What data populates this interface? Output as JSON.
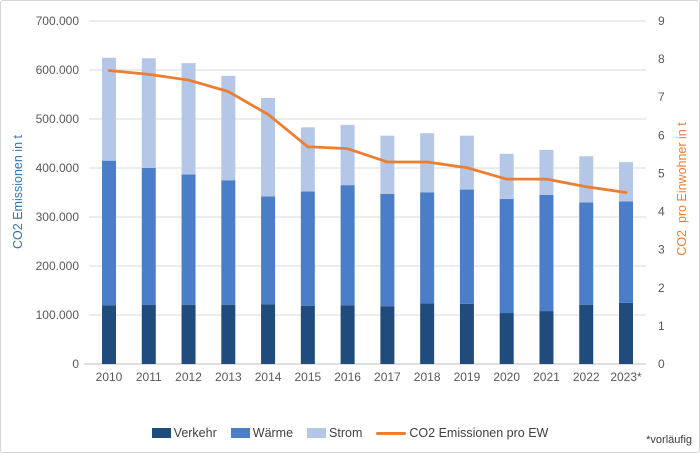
{
  "footnote": "*vorläufig",
  "chart_data": {
    "type": "bar",
    "subtype": "stacked-bars-with-line-overlay",
    "categories": [
      "2010",
      "2011",
      "2012",
      "2013",
      "2014",
      "2015",
      "2016",
      "2017",
      "2018",
      "2019",
      "2020",
      "2021",
      "2022",
      "2023*"
    ],
    "series": [
      {
        "name": "Verkehr",
        "key": "verkehr",
        "type": "bar",
        "axis": "left",
        "color": "#1F4B7D",
        "values": [
          120000,
          121000,
          121000,
          121000,
          122000,
          119000,
          120000,
          118000,
          124000,
          123000,
          104000,
          108000,
          121000,
          125000
        ]
      },
      {
        "name": "Wärme",
        "key": "waerme",
        "type": "bar",
        "axis": "left",
        "color": "#4A7EC8",
        "values": [
          295000,
          279000,
          266000,
          254000,
          220000,
          233000,
          245000,
          229000,
          226000,
          233000,
          233000,
          237000,
          209000,
          207000
        ]
      },
      {
        "name": "Strom",
        "key": "strom",
        "type": "bar",
        "axis": "left",
        "color": "#B4C7E7",
        "values": [
          210000,
          224000,
          227000,
          213000,
          201000,
          131000,
          123000,
          119000,
          121000,
          110000,
          92000,
          92000,
          94000,
          80000
        ]
      },
      {
        "name": "CO2 Emissionen pro EW",
        "key": "co2-pro-ew",
        "type": "line",
        "axis": "right",
        "color": "#ED7D31",
        "values": [
          7.7,
          7.6,
          7.45,
          7.15,
          6.55,
          5.7,
          5.65,
          5.3,
          5.3,
          5.15,
          4.85,
          4.85,
          4.65,
          4.5
        ]
      }
    ],
    "left_axis": {
      "label": "CO2 Emissionen in t",
      "min": 0,
      "max": 700000,
      "step": 100000,
      "tick_labels": [
        "0",
        "100.000",
        "200.000",
        "300.000",
        "400.000",
        "500.000",
        "600.000",
        "700.000"
      ],
      "color": "#2E75B6"
    },
    "right_axis": {
      "label": "CO2  pro Einwohner in t",
      "min": 0,
      "max": 9,
      "step": 1,
      "tick_labels": [
        "0",
        "1",
        "2",
        "3",
        "4",
        "5",
        "6",
        "7",
        "8",
        "9"
      ],
      "color": "#ED7D31"
    },
    "grid": true,
    "legend_position": "bottom",
    "colors": {
      "grid": "#D9D9D9",
      "axis_line": "#BFBFBF",
      "tick_text": "#595959"
    }
  }
}
